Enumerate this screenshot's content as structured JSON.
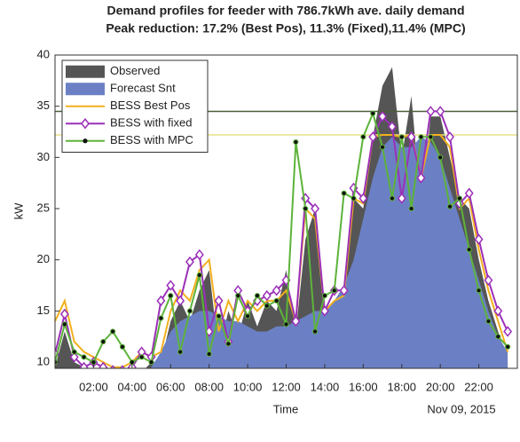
{
  "chart_data": {
    "type": "line",
    "title": "Demand profiles for feeder with 786.7kWh ave. daily demand",
    "subtitle": "Peak reduction: 17.2% (Best Pos), 11.3% (Fixed),11.4% (MPC)",
    "x_label": "Time",
    "y_label": "kW",
    "date_label": "Nov 09, 2015",
    "x": [
      0,
      0.5,
      1,
      1.5,
      2,
      2.5,
      3,
      3.5,
      4,
      4.5,
      5,
      5.5,
      6,
      6.5,
      7,
      7.5,
      8,
      8.5,
      9,
      9.5,
      10,
      10.5,
      11,
      11.5,
      12,
      12.5,
      13,
      13.5,
      14,
      14.5,
      15,
      15.5,
      16,
      16.5,
      17,
      17.5,
      18,
      18.5,
      19,
      19.5,
      20,
      20.5,
      21,
      21.5,
      22,
      22.5,
      23,
      23.5
    ],
    "series": [
      {
        "name": "Observed",
        "color": "#555555",
        "style": "area",
        "values": [
          9.5,
          13,
          10,
          9.5,
          8.5,
          8,
          7.8,
          7.8,
          8,
          9,
          10,
          10,
          14,
          16,
          14,
          17,
          19,
          11,
          15,
          12.5,
          16,
          13.5,
          16,
          15,
          19,
          13,
          22,
          25,
          14,
          16,
          16,
          26,
          25,
          32,
          37,
          38.8,
          30,
          36,
          25,
          34,
          34,
          30,
          26,
          25,
          20,
          16,
          13,
          10
        ]
      },
      {
        "name": "Forecast Snt",
        "color": "#6b80c4",
        "style": "area",
        "values": [
          8.5,
          8.5,
          8.3,
          8,
          7.5,
          7.2,
          7,
          7,
          7.2,
          8,
          9.5,
          11,
          13,
          14,
          14.5,
          15,
          15,
          14.5,
          14,
          14,
          13.5,
          13,
          13,
          13.5,
          13.5,
          14,
          14.5,
          15,
          15,
          16,
          17.5,
          20,
          24,
          28,
          31,
          32,
          31,
          31,
          32,
          31.5,
          30,
          27,
          24,
          21,
          18,
          15,
          12.5,
          11
        ]
      },
      {
        "name": "BESS Best Pos",
        "color": "#f2b01e",
        "style": "line",
        "values": [
          14,
          16,
          12,
          11,
          10.5,
          10,
          9.5,
          9.5,
          10,
          11,
          10.5,
          11,
          15,
          17,
          16,
          19,
          20,
          13,
          16,
          14,
          16,
          15,
          16,
          16,
          17,
          14,
          25,
          24,
          15,
          16,
          16.5,
          26,
          25.5,
          32,
          32.2,
          32.2,
          32,
          32.2,
          28,
          32.2,
          32.2,
          31,
          25,
          26,
          21,
          17,
          14,
          11
        ]
      },
      {
        "name": "BESS with fixed",
        "color": "#9b30b8",
        "style": "line",
        "marker": "diamond",
        "values": [
          10.8,
          14.7,
          10.5,
          9.5,
          10,
          9.5,
          9.2,
          9.2,
          9.5,
          11,
          10.5,
          16,
          17.5,
          16,
          19.8,
          20.5,
          13,
          16,
          12,
          17,
          15,
          16,
          16.5,
          17,
          18,
          14,
          26,
          25,
          15,
          17,
          17,
          27,
          26,
          32,
          34,
          33,
          26,
          32,
          28,
          34.5,
          34.5,
          32,
          25.5,
          26.5,
          22,
          18,
          15,
          13
        ]
      },
      {
        "name": "BESS with MPC",
        "color": "#5db33a",
        "style": "line",
        "marker": "dot",
        "values": [
          10,
          13.7,
          11,
          10.5,
          10,
          12,
          13,
          11.5,
          10,
          10.5,
          10,
          14.3,
          16.5,
          11,
          15,
          18.5,
          10.8,
          14.5,
          11.8,
          16.5,
          14.5,
          16.5,
          15.5,
          16,
          13.7,
          31.5,
          25,
          13,
          16.5,
          17,
          26.5,
          26,
          32,
          34.3,
          31,
          26,
          32,
          25,
          32,
          32,
          30,
          25.2,
          26,
          21,
          17,
          14,
          12.5,
          11.5
        ]
      }
    ],
    "hlines": [
      {
        "value": 34.5,
        "color": "#4d5e3a"
      },
      {
        "value": 32.2,
        "color": "#e8e08a"
      }
    ],
    "xlim": [
      0,
      24
    ],
    "xticks": [
      {
        "value": 2,
        "label": "02:00"
      },
      {
        "value": 4,
        "label": "04:00"
      },
      {
        "value": 6,
        "label": "06:00"
      },
      {
        "value": 8,
        "label": "08:00"
      },
      {
        "value": 10,
        "label": "10:00"
      },
      {
        "value": 12,
        "label": "12:00"
      },
      {
        "value": 14,
        "label": "14:00"
      },
      {
        "value": 16,
        "label": "16:00"
      },
      {
        "value": 18,
        "label": "18:00"
      },
      {
        "value": 20,
        "label": "20:00"
      },
      {
        "value": 22,
        "label": "22:00"
      }
    ],
    "ylim": [
      9.4,
      40
    ],
    "yticks": [
      10,
      15,
      20,
      25,
      30,
      35,
      40
    ],
    "legend": "upper left"
  }
}
